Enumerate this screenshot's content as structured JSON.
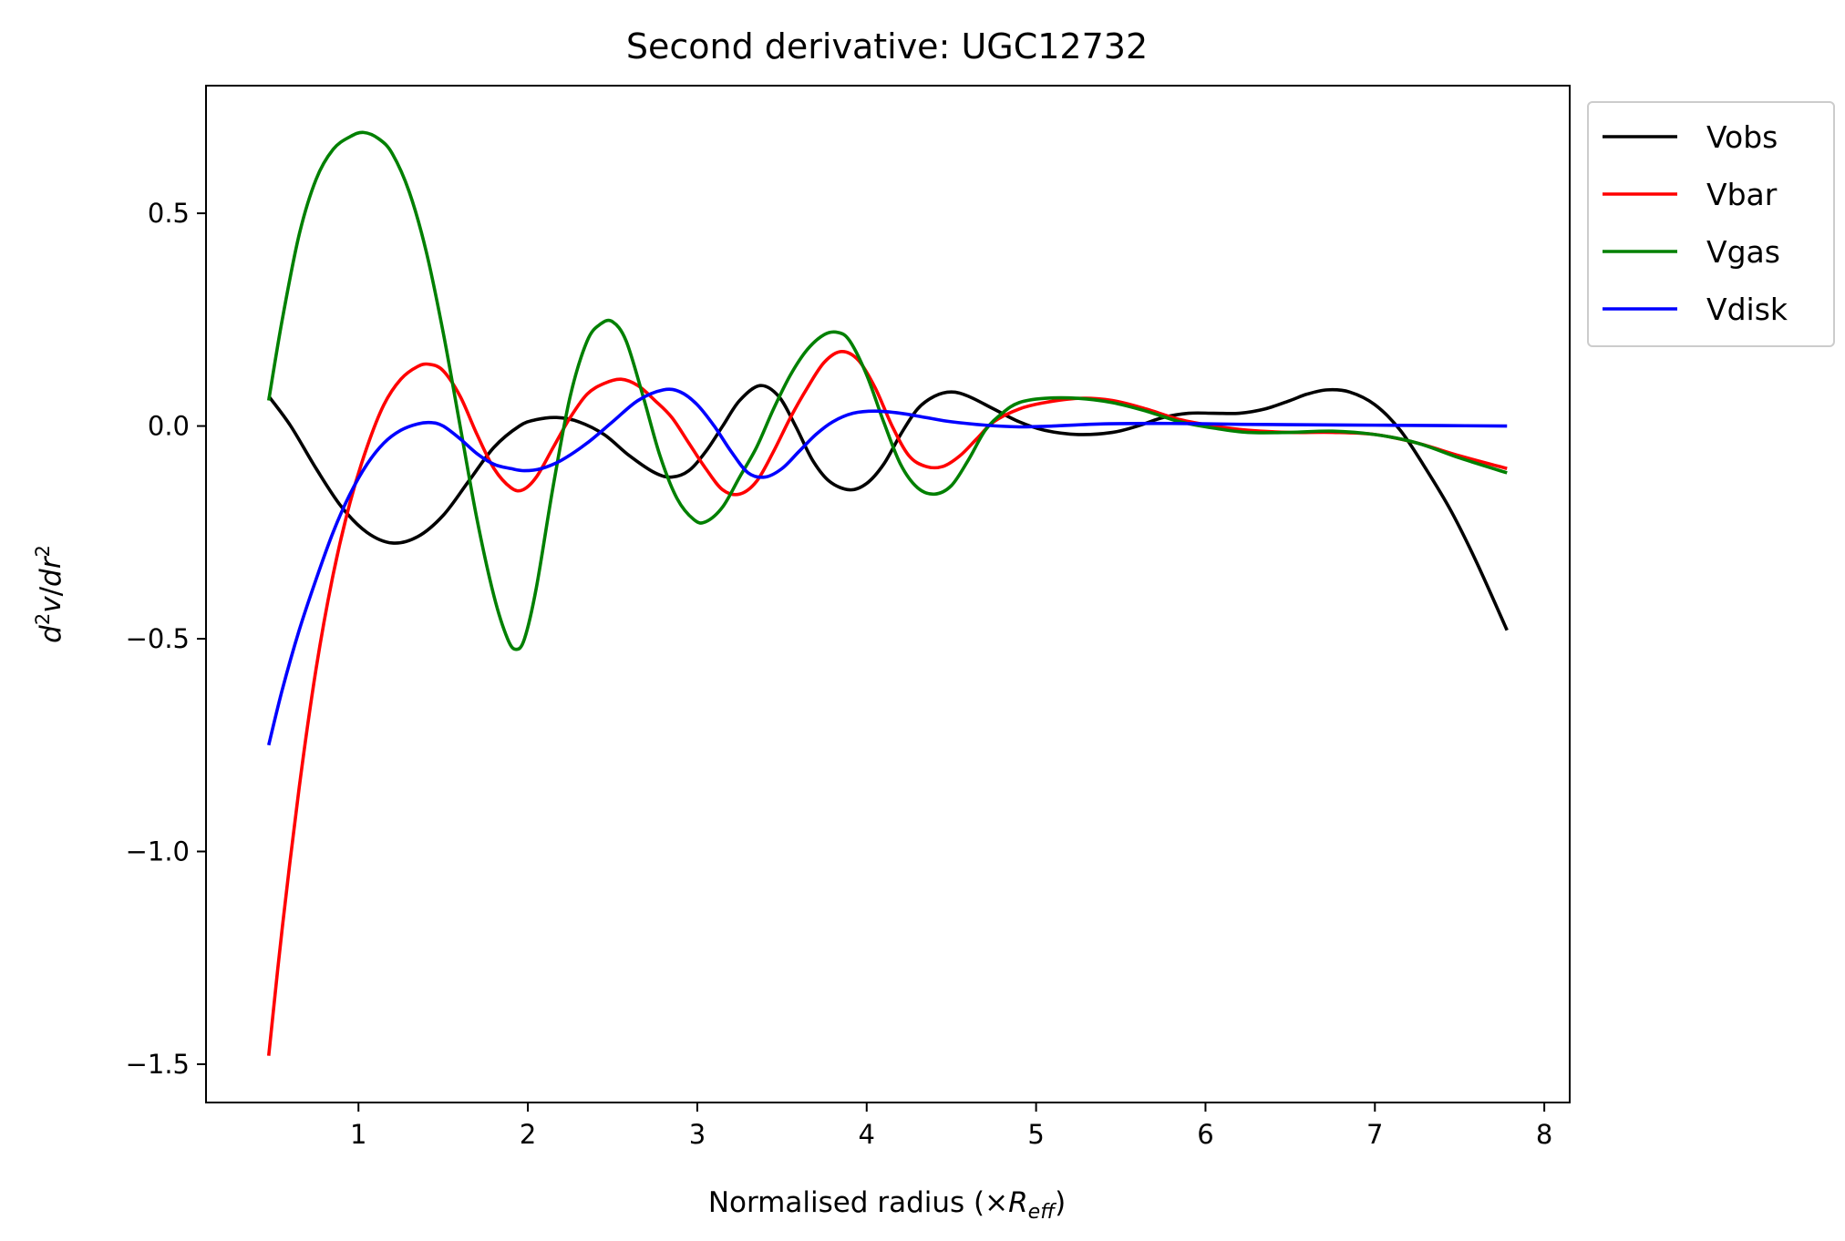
{
  "chart_data": {
    "type": "line",
    "title": "Second derivative: UGC12732",
    "xlabel": {
      "prefix": "Normalised radius (×",
      "symbol": "R",
      "subscript": "eff",
      "suffix": ")"
    },
    "ylabel": {
      "d1": "d",
      "sup1": "2",
      "v": "v",
      "slash": "/",
      "d2": "dr",
      "sup2": "2"
    },
    "xlim": [
      0.1,
      8.15
    ],
    "ylim": [
      -1.59,
      0.8
    ],
    "xticks": [
      1,
      2,
      3,
      4,
      5,
      6,
      7,
      8
    ],
    "xtick_labels": [
      "1",
      "2",
      "3",
      "4",
      "5",
      "6",
      "7",
      "8"
    ],
    "yticks": [
      0.5,
      0.0,
      -0.5,
      -1.0,
      -1.5
    ],
    "ytick_labels": [
      "0.5",
      "0.0",
      "−0.5",
      "−1.0",
      "−1.5"
    ],
    "grid": false,
    "legend_position": "outside-top-right",
    "series": [
      {
        "name": "Vobs",
        "color": "#000000",
        "points": [
          [
            0.47,
            0.07
          ],
          [
            0.6,
            0.0
          ],
          [
            0.75,
            -0.1
          ],
          [
            0.9,
            -0.19
          ],
          [
            1.05,
            -0.25
          ],
          [
            1.2,
            -0.275
          ],
          [
            1.35,
            -0.26
          ],
          [
            1.5,
            -0.21
          ],
          [
            1.65,
            -0.13
          ],
          [
            1.8,
            -0.05
          ],
          [
            1.95,
            0.0
          ],
          [
            2.05,
            0.015
          ],
          [
            2.17,
            0.02
          ],
          [
            2.3,
            0.01
          ],
          [
            2.45,
            -0.02
          ],
          [
            2.6,
            -0.07
          ],
          [
            2.75,
            -0.11
          ],
          [
            2.85,
            -0.12
          ],
          [
            2.95,
            -0.105
          ],
          [
            3.05,
            -0.06
          ],
          [
            3.15,
            0.0
          ],
          [
            3.25,
            0.06
          ],
          [
            3.37,
            0.095
          ],
          [
            3.48,
            0.07
          ],
          [
            3.58,
            0.0
          ],
          [
            3.68,
            -0.08
          ],
          [
            3.78,
            -0.13
          ],
          [
            3.9,
            -0.15
          ],
          [
            4.0,
            -0.135
          ],
          [
            4.1,
            -0.09
          ],
          [
            4.2,
            -0.02
          ],
          [
            4.3,
            0.04
          ],
          [
            4.4,
            0.07
          ],
          [
            4.5,
            0.08
          ],
          [
            4.6,
            0.07
          ],
          [
            4.75,
            0.04
          ],
          [
            4.9,
            0.01
          ],
          [
            5.05,
            -0.01
          ],
          [
            5.25,
            -0.02
          ],
          [
            5.45,
            -0.015
          ],
          [
            5.6,
            0.0
          ],
          [
            5.75,
            0.02
          ],
          [
            5.9,
            0.03
          ],
          [
            6.05,
            0.03
          ],
          [
            6.2,
            0.03
          ],
          [
            6.35,
            0.04
          ],
          [
            6.5,
            0.06
          ],
          [
            6.6,
            0.075
          ],
          [
            6.72,
            0.085
          ],
          [
            6.85,
            0.08
          ],
          [
            7.0,
            0.05
          ],
          [
            7.15,
            -0.01
          ],
          [
            7.3,
            -0.1
          ],
          [
            7.45,
            -0.2
          ],
          [
            7.6,
            -0.32
          ],
          [
            7.78,
            -0.48
          ]
        ]
      },
      {
        "name": "Vbar",
        "color": "#ff0000",
        "points": [
          [
            0.47,
            -1.48
          ],
          [
            0.55,
            -1.18
          ],
          [
            0.65,
            -0.85
          ],
          [
            0.75,
            -0.57
          ],
          [
            0.85,
            -0.35
          ],
          [
            0.95,
            -0.18
          ],
          [
            1.05,
            -0.05
          ],
          [
            1.15,
            0.05
          ],
          [
            1.25,
            0.11
          ],
          [
            1.35,
            0.14
          ],
          [
            1.42,
            0.145
          ],
          [
            1.5,
            0.13
          ],
          [
            1.6,
            0.07
          ],
          [
            1.7,
            -0.02
          ],
          [
            1.8,
            -0.1
          ],
          [
            1.9,
            -0.145
          ],
          [
            1.97,
            -0.15
          ],
          [
            2.05,
            -0.12
          ],
          [
            2.15,
            -0.05
          ],
          [
            2.25,
            0.02
          ],
          [
            2.35,
            0.075
          ],
          [
            2.45,
            0.1
          ],
          [
            2.55,
            0.11
          ],
          [
            2.65,
            0.095
          ],
          [
            2.75,
            0.06
          ],
          [
            2.85,
            0.02
          ],
          [
            2.95,
            -0.04
          ],
          [
            3.05,
            -0.1
          ],
          [
            3.15,
            -0.15
          ],
          [
            3.25,
            -0.16
          ],
          [
            3.35,
            -0.13
          ],
          [
            3.45,
            -0.06
          ],
          [
            3.55,
            0.02
          ],
          [
            3.65,
            0.09
          ],
          [
            3.75,
            0.15
          ],
          [
            3.85,
            0.175
          ],
          [
            3.95,
            0.155
          ],
          [
            4.05,
            0.09
          ],
          [
            4.15,
            0.0
          ],
          [
            4.25,
            -0.07
          ],
          [
            4.35,
            -0.095
          ],
          [
            4.45,
            -0.095
          ],
          [
            4.55,
            -0.07
          ],
          [
            4.65,
            -0.03
          ],
          [
            4.75,
            0.01
          ],
          [
            4.9,
            0.04
          ],
          [
            5.05,
            0.055
          ],
          [
            5.25,
            0.065
          ],
          [
            5.45,
            0.06
          ],
          [
            5.65,
            0.04
          ],
          [
            5.85,
            0.015
          ],
          [
            6.05,
            0.0
          ],
          [
            6.25,
            -0.01
          ],
          [
            6.5,
            -0.015
          ],
          [
            6.75,
            -0.015
          ],
          [
            7.0,
            -0.02
          ],
          [
            7.25,
            -0.04
          ],
          [
            7.5,
            -0.07
          ],
          [
            7.78,
            -0.1
          ]
        ]
      },
      {
        "name": "Vgas",
        "color": "#008000",
        "points": [
          [
            0.47,
            0.06
          ],
          [
            0.55,
            0.25
          ],
          [
            0.65,
            0.45
          ],
          [
            0.75,
            0.58
          ],
          [
            0.85,
            0.65
          ],
          [
            0.95,
            0.68
          ],
          [
            1.03,
            0.69
          ],
          [
            1.12,
            0.675
          ],
          [
            1.2,
            0.64
          ],
          [
            1.3,
            0.55
          ],
          [
            1.4,
            0.41
          ],
          [
            1.5,
            0.22
          ],
          [
            1.6,
            0.0
          ],
          [
            1.7,
            -0.22
          ],
          [
            1.8,
            -0.4
          ],
          [
            1.88,
            -0.5
          ],
          [
            1.93,
            -0.525
          ],
          [
            1.98,
            -0.5
          ],
          [
            2.05,
            -0.38
          ],
          [
            2.15,
            -0.14
          ],
          [
            2.25,
            0.07
          ],
          [
            2.35,
            0.2
          ],
          [
            2.43,
            0.24
          ],
          [
            2.5,
            0.245
          ],
          [
            2.58,
            0.2
          ],
          [
            2.68,
            0.07
          ],
          [
            2.78,
            -0.07
          ],
          [
            2.88,
            -0.17
          ],
          [
            2.98,
            -0.22
          ],
          [
            3.05,
            -0.225
          ],
          [
            3.15,
            -0.19
          ],
          [
            3.25,
            -0.12
          ],
          [
            3.35,
            -0.05
          ],
          [
            3.45,
            0.04
          ],
          [
            3.55,
            0.12
          ],
          [
            3.65,
            0.18
          ],
          [
            3.75,
            0.215
          ],
          [
            3.83,
            0.22
          ],
          [
            3.9,
            0.2
          ],
          [
            4.0,
            0.12
          ],
          [
            4.1,
            0.01
          ],
          [
            4.2,
            -0.09
          ],
          [
            4.3,
            -0.145
          ],
          [
            4.4,
            -0.16
          ],
          [
            4.5,
            -0.14
          ],
          [
            4.6,
            -0.08
          ],
          [
            4.7,
            -0.01
          ],
          [
            4.8,
            0.03
          ],
          [
            4.9,
            0.055
          ],
          [
            5.05,
            0.065
          ],
          [
            5.25,
            0.065
          ],
          [
            5.45,
            0.055
          ],
          [
            5.65,
            0.035
          ],
          [
            5.85,
            0.01
          ],
          [
            6.05,
            -0.005
          ],
          [
            6.25,
            -0.015
          ],
          [
            6.5,
            -0.015
          ],
          [
            6.75,
            -0.012
          ],
          [
            7.0,
            -0.02
          ],
          [
            7.25,
            -0.04
          ],
          [
            7.5,
            -0.075
          ],
          [
            7.78,
            -0.11
          ]
        ]
      },
      {
        "name": "Vdisk",
        "color": "#0000ff",
        "points": [
          [
            0.47,
            -0.75
          ],
          [
            0.55,
            -0.62
          ],
          [
            0.65,
            -0.48
          ],
          [
            0.75,
            -0.36
          ],
          [
            0.85,
            -0.25
          ],
          [
            0.95,
            -0.16
          ],
          [
            1.05,
            -0.09
          ],
          [
            1.15,
            -0.04
          ],
          [
            1.25,
            -0.01
          ],
          [
            1.35,
            0.005
          ],
          [
            1.43,
            0.008
          ],
          [
            1.5,
            0.0
          ],
          [
            1.6,
            -0.03
          ],
          [
            1.7,
            -0.065
          ],
          [
            1.8,
            -0.09
          ],
          [
            1.9,
            -0.1
          ],
          [
            1.98,
            -0.105
          ],
          [
            2.08,
            -0.1
          ],
          [
            2.2,
            -0.08
          ],
          [
            2.35,
            -0.04
          ],
          [
            2.5,
            0.01
          ],
          [
            2.65,
            0.06
          ],
          [
            2.8,
            0.085
          ],
          [
            2.9,
            0.08
          ],
          [
            3.0,
            0.05
          ],
          [
            3.1,
            0.0
          ],
          [
            3.2,
            -0.06
          ],
          [
            3.3,
            -0.11
          ],
          [
            3.4,
            -0.12
          ],
          [
            3.5,
            -0.1
          ],
          [
            3.6,
            -0.06
          ],
          [
            3.7,
            -0.02
          ],
          [
            3.8,
            0.01
          ],
          [
            3.92,
            0.03
          ],
          [
            4.05,
            0.035
          ],
          [
            4.2,
            0.03
          ],
          [
            4.35,
            0.02
          ],
          [
            4.5,
            0.01
          ],
          [
            4.7,
            0.002
          ],
          [
            4.9,
            -0.002
          ],
          [
            5.1,
            0.0
          ],
          [
            5.4,
            0.005
          ],
          [
            5.8,
            0.006
          ],
          [
            6.2,
            0.004
          ],
          [
            6.6,
            0.003
          ],
          [
            7.0,
            0.002
          ],
          [
            7.4,
            0.001
          ],
          [
            7.78,
            0.0
          ]
        ]
      }
    ]
  }
}
